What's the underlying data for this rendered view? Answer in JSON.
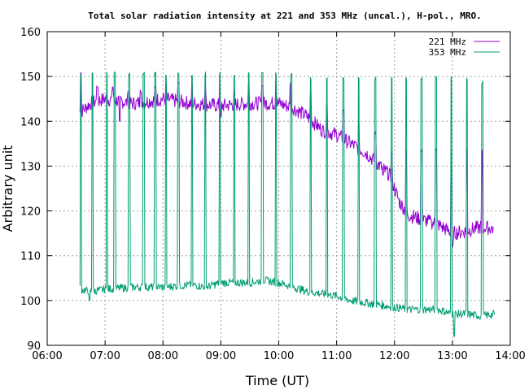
{
  "chart_data": {
    "type": "line",
    "title": "Total solar radiation intensity at 221 and 353 MHz (uncal.), H-pol., MRO.",
    "xlabel": "Time (UT)",
    "ylabel": "Arbitrary unit",
    "xlim": [
      "06:00",
      "14:00"
    ],
    "ylim": [
      90,
      160
    ],
    "grid": true,
    "legend_position": "top-right",
    "x_ticks": [
      "06:00",
      "07:00",
      "08:00",
      "09:00",
      "10:00",
      "11:00",
      "12:00",
      "13:00",
      "14:00"
    ],
    "y_ticks": [
      90,
      100,
      110,
      120,
      130,
      140,
      150,
      160
    ],
    "series": [
      {
        "name": "221 MHz",
        "color": "#9400d3",
        "baseline": [
          [
            "06:34",
            142
          ],
          [
            "06:45",
            144
          ],
          [
            "07:00",
            145
          ],
          [
            "07:30",
            144
          ],
          [
            "08:00",
            145
          ],
          [
            "08:30",
            144
          ],
          [
            "09:00",
            143.5
          ],
          [
            "09:30",
            144
          ],
          [
            "10:00",
            144
          ],
          [
            "10:15",
            143
          ],
          [
            "10:30",
            141
          ],
          [
            "10:45",
            138
          ],
          [
            "11:00",
            137
          ],
          [
            "11:15",
            135
          ],
          [
            "11:30",
            133
          ],
          [
            "11:45",
            130
          ],
          [
            "11:55",
            128
          ],
          [
            "12:05",
            122
          ],
          [
            "12:15",
            119
          ],
          [
            "12:30",
            118
          ],
          [
            "12:45",
            117
          ],
          [
            "13:00",
            115
          ],
          [
            "13:15",
            115.5
          ],
          [
            "13:30",
            116.5
          ],
          [
            "13:43",
            116
          ]
        ],
        "spikes": [
          [
            "06:35",
            151
          ],
          [
            "06:52",
            148
          ],
          [
            "07:08",
            148
          ],
          [
            "07:24",
            147
          ],
          [
            "07:37",
            147
          ],
          [
            "07:52",
            148
          ],
          [
            "08:03",
            149
          ],
          [
            "08:16",
            149
          ],
          [
            "08:30",
            149
          ],
          [
            "08:44",
            148
          ],
          [
            "08:59",
            148
          ],
          [
            "09:14",
            148
          ],
          [
            "09:29",
            149
          ],
          [
            "09:43",
            148
          ],
          [
            "09:57",
            149
          ],
          [
            "10:12",
            149
          ],
          [
            "10:33",
            147
          ],
          [
            "10:50",
            144
          ],
          [
            "11:07",
            143
          ],
          [
            "11:23",
            140
          ],
          [
            "11:40",
            138
          ],
          [
            "11:57",
            134
          ],
          [
            "12:12",
            134
          ],
          [
            "12:28",
            134
          ],
          [
            "12:43",
            134
          ],
          [
            "12:59",
            134
          ],
          [
            "13:15",
            134
          ],
          [
            "13:31",
            134
          ]
        ],
        "dips": [
          [
            "07:15",
            140
          ],
          [
            "09:00",
            141
          ],
          [
            "11:48",
            128
          ],
          [
            "12:38",
            118
          ],
          [
            "13:00",
            112
          ],
          [
            "13:32",
            115
          ]
        ]
      },
      {
        "name": "353 MHz",
        "color": "#009e73",
        "baseline": [
          [
            "06:34",
            102.5
          ],
          [
            "06:45",
            102
          ],
          [
            "07:00",
            102.5
          ],
          [
            "07:30",
            103
          ],
          [
            "08:00",
            103
          ],
          [
            "08:30",
            103.5
          ],
          [
            "08:45",
            103
          ],
          [
            "09:00",
            104
          ],
          [
            "09:30",
            104
          ],
          [
            "09:45",
            104.5
          ],
          [
            "10:00",
            104
          ],
          [
            "10:15",
            103
          ],
          [
            "10:30",
            102
          ],
          [
            "11:00",
            101
          ],
          [
            "11:15",
            100
          ],
          [
            "11:30",
            99.5
          ],
          [
            "11:45",
            99
          ],
          [
            "12:00",
            98.5
          ],
          [
            "12:15",
            98
          ],
          [
            "12:30",
            98
          ],
          [
            "12:45",
            98
          ],
          [
            "13:00",
            97
          ],
          [
            "13:15",
            97
          ],
          [
            "13:30",
            96.5
          ],
          [
            "13:44",
            97
          ]
        ],
        "spikes": [
          [
            "06:35",
            151
          ],
          [
            "06:47",
            151
          ],
          [
            "07:02",
            151
          ],
          [
            "07:10",
            151
          ],
          [
            "07:25",
            151
          ],
          [
            "07:40",
            151
          ],
          [
            "07:52",
            151
          ],
          [
            "08:03",
            151
          ],
          [
            "08:16",
            151
          ],
          [
            "08:30",
            151
          ],
          [
            "08:44",
            151
          ],
          [
            "08:59",
            151
          ],
          [
            "09:14",
            151
          ],
          [
            "09:29",
            151
          ],
          [
            "09:43",
            151
          ],
          [
            "09:57",
            151
          ],
          [
            "10:13",
            151
          ],
          [
            "10:33",
            150
          ],
          [
            "10:50",
            150
          ],
          [
            "11:07",
            150
          ],
          [
            "11:23",
            150
          ],
          [
            "11:40",
            150
          ],
          [
            "11:57",
            150
          ],
          [
            "12:12",
            150
          ],
          [
            "12:28",
            150
          ],
          [
            "12:43",
            150
          ],
          [
            "12:59",
            150
          ],
          [
            "13:15",
            150
          ],
          [
            "13:31",
            149
          ]
        ],
        "dips": [
          [
            "06:44",
            100
          ],
          [
            "13:02",
            92
          ]
        ]
      }
    ]
  }
}
